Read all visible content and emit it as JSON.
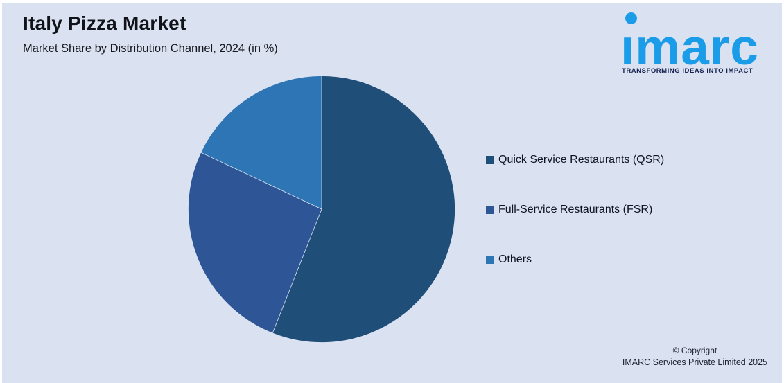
{
  "header": {
    "title": "Italy Pizza Market",
    "subtitle": "Market Share by Distribution Channel, 2024 (in %)"
  },
  "logo": {
    "word": "ımarc",
    "tagline": "TRANSFORMING IDEAS INTO IMPACT",
    "brand_blue": "#1b9ce8",
    "tagline_navy": "#16234e"
  },
  "chart_data": {
    "type": "pie",
    "title": "Italy Pizza Market",
    "subtitle": "Market Share by Distribution Channel, 2024 (in %)",
    "labels": [
      "Quick Service Restaurants (QSR)",
      "Full-Service Restaurants (FSR)",
      "Others"
    ],
    "values": [
      56,
      26,
      18
    ],
    "unit": "%",
    "colors": [
      "#1F4E79",
      "#2E5697",
      "#2E75B6"
    ],
    "start_angle_deg": 0,
    "direction": "clockwise",
    "legend_position": "right",
    "background": "#dae1f1"
  },
  "legend": {
    "items": [
      {
        "label": "Quick Service Restaurants (QSR)",
        "color": "#1F4E79"
      },
      {
        "label": "Full-Service Restaurants (FSR)",
        "color": "#2E5697"
      },
      {
        "label": "Others",
        "color": "#2E75B6"
      }
    ]
  },
  "footer": {
    "line1": "© Copyright",
    "line2": "IMARC Services Private Limited 2025"
  }
}
